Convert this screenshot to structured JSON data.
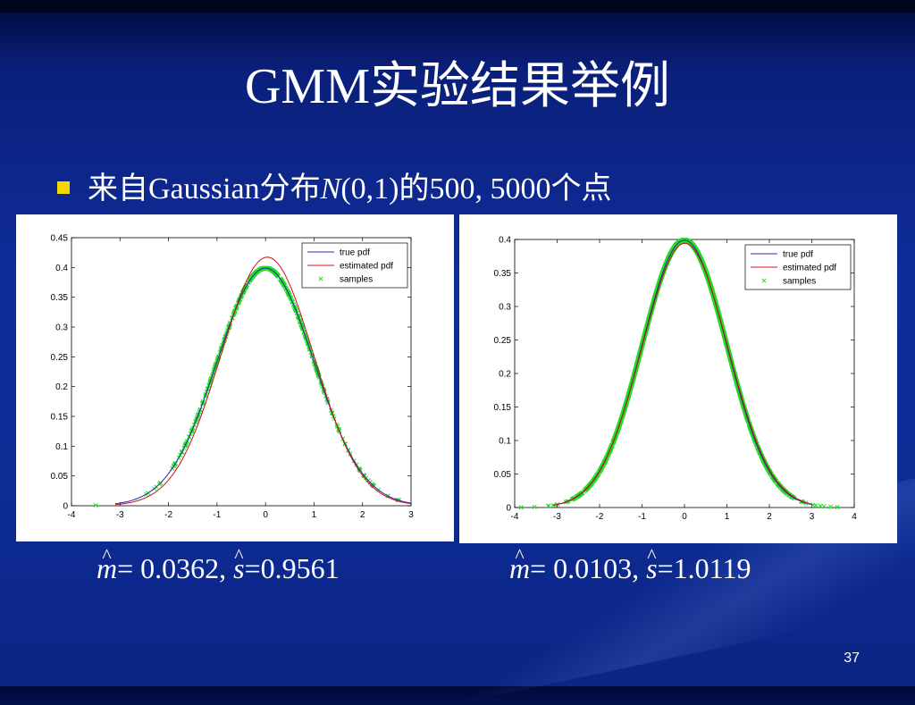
{
  "slide": {
    "title": "GMM实验结果举例",
    "bullet": {
      "prefix": "来自Gaussian分布",
      "dist_symbol": "N",
      "dist_params": "(0,1)",
      "suffix": "的500, 5000个点"
    },
    "page_number": "37"
  },
  "colors": {
    "background": "#0e2c96",
    "bullet": "#f5d600",
    "true_pdf": "#2a2ab0",
    "estimated_pdf": "#d01010",
    "samples": "#22dd22"
  },
  "chart_data": [
    {
      "type": "line",
      "n_samples": 500,
      "xlim": [
        -4,
        3
      ],
      "ylim": [
        0,
        0.45
      ],
      "xticks": [
        "-4",
        "-3",
        "-2",
        "-1",
        "0",
        "1",
        "2",
        "3"
      ],
      "yticks": [
        "0",
        "0.05",
        "0.1",
        "0.15",
        "0.2",
        "0.25",
        "0.3",
        "0.35",
        "0.4",
        "0.45"
      ],
      "legend": [
        "true pdf",
        "estimated pdf",
        "samples"
      ],
      "legend_position": "top-right",
      "series": [
        {
          "name": "true pdf",
          "mean": 0,
          "sd": 1
        },
        {
          "name": "estimated pdf",
          "mean": 0.0362,
          "sd": 0.9561
        },
        {
          "name": "samples",
          "x_range": [
            -3.5,
            2.75
          ]
        }
      ],
      "stats": {
        "m_label": "m",
        "m_value": "= 0.0362,",
        "s_label": "s",
        "s_value": "=0.9561"
      }
    },
    {
      "type": "line",
      "n_samples": 5000,
      "xlim": [
        -4,
        4
      ],
      "ylim": [
        0,
        0.4
      ],
      "xticks": [
        "-4",
        "-3",
        "-2",
        "-1",
        "0",
        "1",
        "2",
        "3",
        "4"
      ],
      "yticks": [
        "0",
        "0.05",
        "0.1",
        "0.15",
        "0.2",
        "0.25",
        "0.3",
        "0.35",
        "0.4"
      ],
      "legend": [
        "true pdf",
        "estimated pdf",
        "samples"
      ],
      "legend_position": "top-right",
      "series": [
        {
          "name": "true pdf",
          "mean": 0,
          "sd": 1
        },
        {
          "name": "estimated pdf",
          "mean": 0.0103,
          "sd": 1.0119
        },
        {
          "name": "samples",
          "x_range": [
            -3.85,
            3.6
          ]
        }
      ],
      "stats": {
        "m_label": "m",
        "m_value": "= 0.0103,",
        "s_label": "s",
        "s_value": "=1.0119"
      }
    }
  ]
}
